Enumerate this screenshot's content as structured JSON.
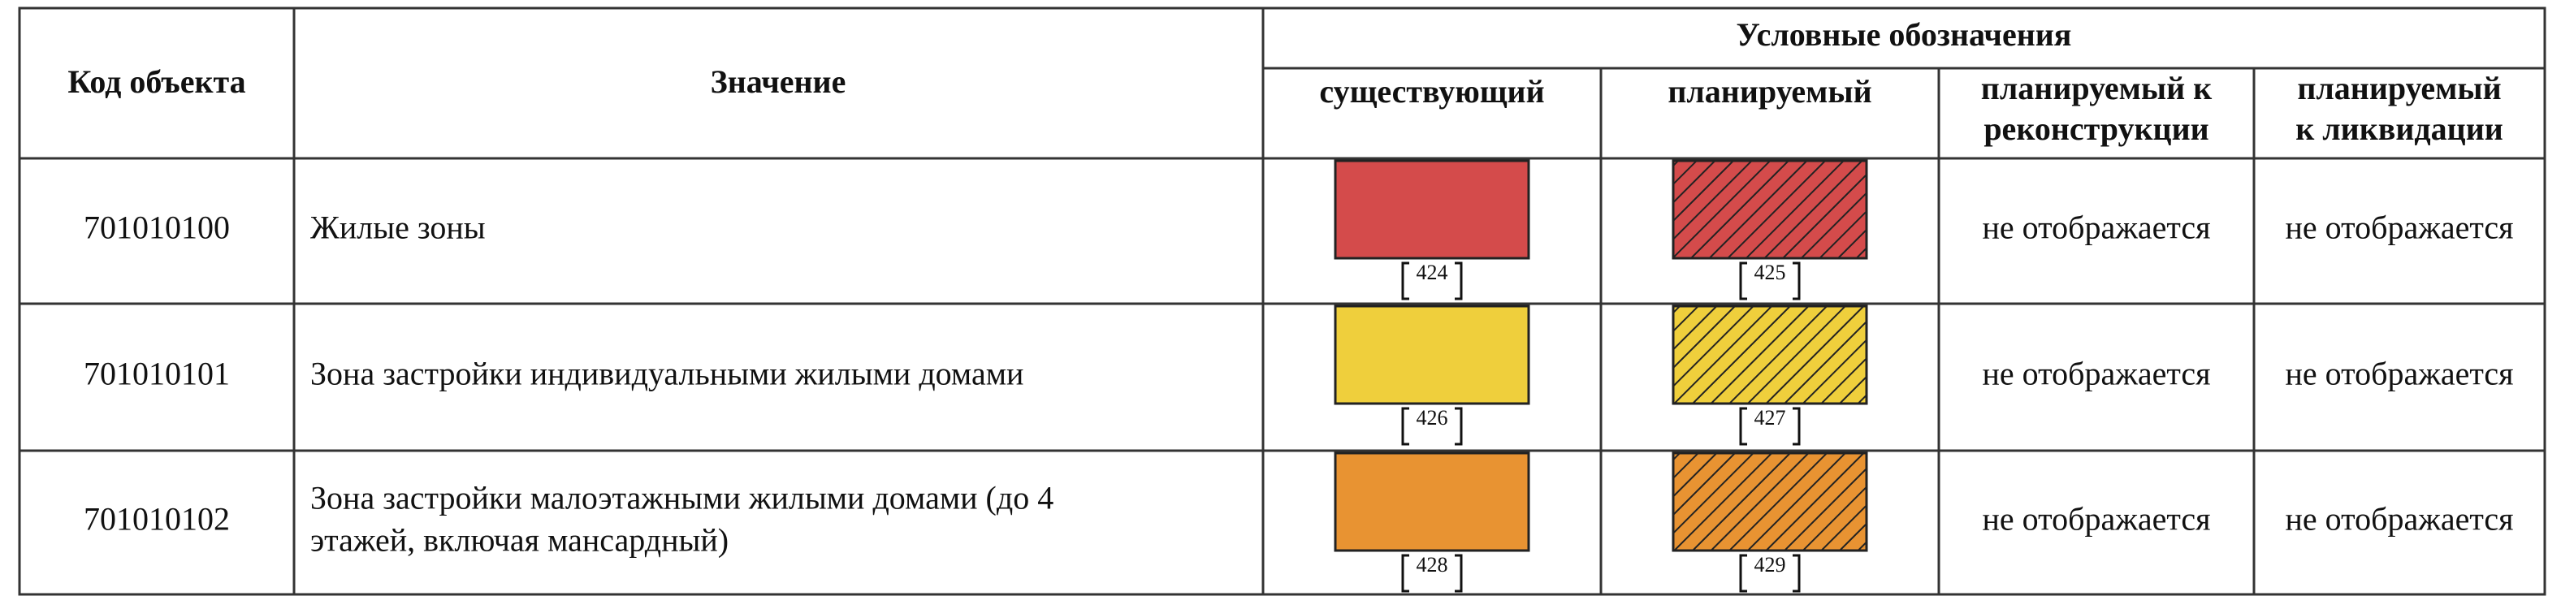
{
  "header": {
    "code": "Код объекта",
    "meaning": "Значение",
    "legend": "Условные обозначения",
    "columns": [
      [
        "существующий"
      ],
      [
        "планируемый"
      ],
      [
        "планируемый к",
        "реконструкции"
      ],
      [
        "планируемый",
        "к ликвидации"
      ]
    ]
  },
  "rows": [
    {
      "code": "701010100",
      "meaning": [
        "Жилые зоны"
      ],
      "existing": "424",
      "planned": "425",
      "reconstruction": "не отображается",
      "liquidation": "не отображается"
    },
    {
      "code": "701010101",
      "meaning": [
        "Зона застройки индивидуальными жилыми домами"
      ],
      "existing": "426",
      "planned": "427",
      "reconstruction": "не отображается",
      "liquidation": "не отображается"
    },
    {
      "code": "701010102",
      "meaning": [
        "Зона застройки малоэтажными жилыми домами (до 4",
        "этажей, включая мансардный)"
      ],
      "existing": "428",
      "planned": "429",
      "reconstruction": "не отображается",
      "liquidation": "не отображается"
    }
  ]
}
